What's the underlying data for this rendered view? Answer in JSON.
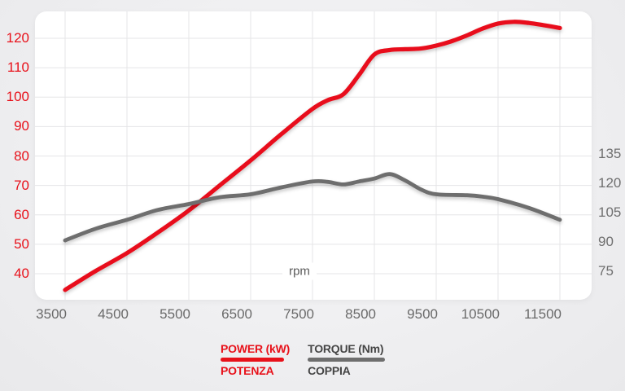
{
  "colors": {
    "red": "#e8111a",
    "torque_gray": "#6e6e6e",
    "grid": "#e5e5e7",
    "axis_text_gray": "#6a6a6a",
    "card_bg": "#ffffff"
  },
  "chart_data": {
    "type": "line",
    "title": "",
    "xlabel": "rpm",
    "grid": true,
    "x_range": [
      3500,
      11500
    ],
    "x_tick_labels": [
      "3500",
      "4500",
      "5500",
      "6500",
      "7500",
      "8500",
      "9500",
      "10500",
      "11500"
    ],
    "left_axis": {
      "units": "kW",
      "tick_labels": [
        "120",
        "110",
        "100",
        "90",
        "80",
        "70",
        "60",
        "50",
        "40"
      ],
      "tick_values": [
        120,
        110,
        100,
        90,
        80,
        70,
        60,
        50,
        40
      ],
      "color": "#e8111a"
    },
    "right_axis": {
      "units": "Nm",
      "tick_labels": [
        "135",
        "120",
        "105",
        "90",
        "75"
      ],
      "tick_values": [
        135,
        120,
        105,
        90,
        75
      ],
      "color": "#6f6f6f"
    },
    "legend_position": "bottom",
    "series": [
      {
        "name": "POWER (kW)",
        "name_sub": "POTENZA",
        "axis": "left",
        "color": "#e8111a",
        "points": [
          [
            3500,
            34.5
          ],
          [
            4000,
            41
          ],
          [
            4500,
            47
          ],
          [
            5000,
            54
          ],
          [
            5500,
            61.5
          ],
          [
            6000,
            70
          ],
          [
            6500,
            78.5
          ],
          [
            7000,
            87.5
          ],
          [
            7500,
            96
          ],
          [
            7750,
            99
          ],
          [
            8000,
            101
          ],
          [
            8250,
            107.5
          ],
          [
            8500,
            114.5
          ],
          [
            8750,
            116
          ],
          [
            9000,
            116.3
          ],
          [
            9250,
            116.5
          ],
          [
            9500,
            117.5
          ],
          [
            9750,
            119
          ],
          [
            10000,
            121
          ],
          [
            10250,
            123.3
          ],
          [
            10500,
            125
          ],
          [
            10750,
            125.6
          ],
          [
            11000,
            125.2
          ],
          [
            11250,
            124.4
          ],
          [
            11500,
            123.5
          ]
        ]
      },
      {
        "name": "TORQUE (Nm)",
        "name_sub": "COPPIA",
        "axis": "right",
        "color": "#6e6e6e",
        "points": [
          [
            3500,
            92
          ],
          [
            4000,
            98
          ],
          [
            4500,
            102.5
          ],
          [
            5000,
            107.5
          ],
          [
            5500,
            110.5
          ],
          [
            6000,
            114
          ],
          [
            6500,
            115.5
          ],
          [
            7000,
            119
          ],
          [
            7500,
            122
          ],
          [
            7750,
            121.8
          ],
          [
            8000,
            120.5
          ],
          [
            8250,
            122
          ],
          [
            8500,
            123.5
          ],
          [
            8750,
            125.8
          ],
          [
            9000,
            122.5
          ],
          [
            9250,
            118
          ],
          [
            9500,
            115.5
          ],
          [
            10000,
            115
          ],
          [
            10250,
            114.3
          ],
          [
            10500,
            113
          ],
          [
            11000,
            108.5
          ],
          [
            11500,
            102.5
          ]
        ]
      }
    ]
  }
}
